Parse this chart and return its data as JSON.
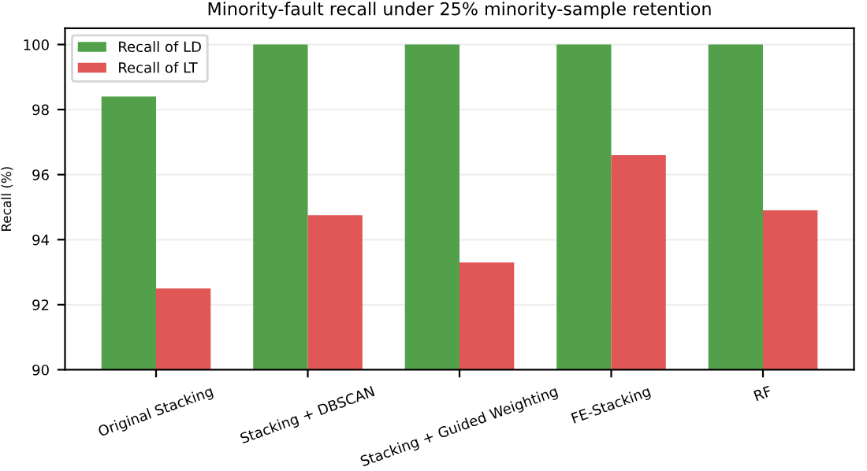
{
  "chart_data": {
    "type": "bar",
    "title": "Minority-fault recall under 25% minority-sample retention",
    "ylabel": "Recall (%)",
    "categories": [
      "Original Stacking",
      "Stacking + DBSCAN",
      "Stacking + Guided Weighting",
      "FE-Stacking",
      "RF"
    ],
    "series": [
      {
        "name": "Recall of LD",
        "color": "#52a04a",
        "values": [
          98.4,
          100,
          100,
          100,
          100
        ]
      },
      {
        "name": "Recall of LT",
        "color": "#e15656",
        "values": [
          92.5,
          94.75,
          93.3,
          96.6,
          94.9
        ]
      }
    ],
    "ylim": [
      90,
      100.5
    ],
    "yticks": [
      90,
      92,
      94,
      96,
      98,
      100
    ],
    "grid": "y",
    "legend": "top left"
  }
}
